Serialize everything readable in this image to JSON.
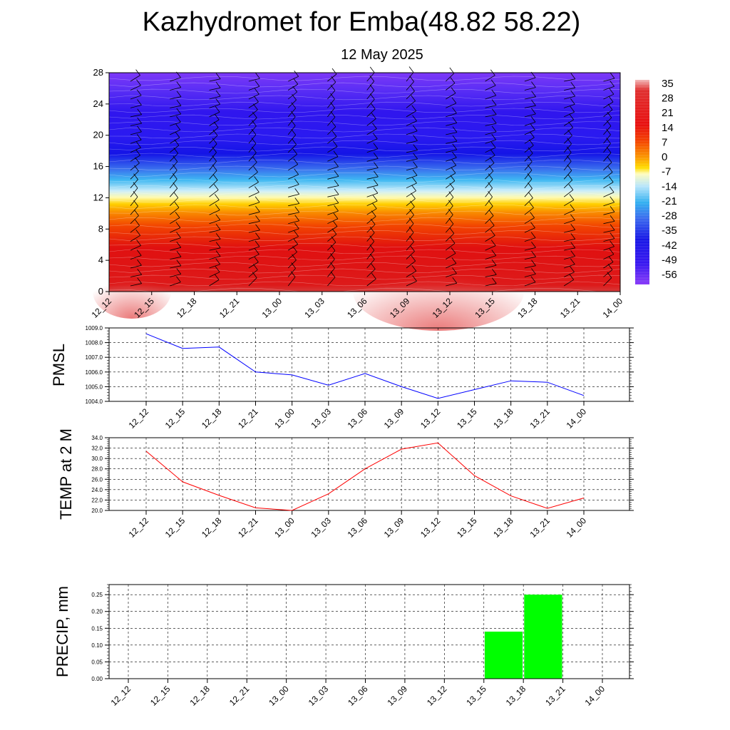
{
  "title": "Kazhydromet for Emba(48.82 58.22)",
  "subtitle": "12 May 2025",
  "time_labels": [
    "12_12",
    "12_15",
    "12_18",
    "12_21",
    "13_00",
    "13_03",
    "13_06",
    "13_09",
    "13_12",
    "13_15",
    "13_18",
    "13_21",
    "14_00"
  ],
  "colors": {
    "pmsl_line": "#0000ff",
    "temp_line": "#ff0000",
    "precip_bar": "#00ff00"
  },
  "chart_data": [
    {
      "type": "heatmap",
      "y_ticks": [
        0,
        4,
        8,
        12,
        16,
        20,
        24,
        28
      ],
      "ylim": [
        0,
        28
      ],
      "colorbar_labels": [
        "35",
        "28",
        "21",
        "14",
        "7",
        "0",
        "-7",
        "-14",
        "-21",
        "-28",
        "-35",
        "-42",
        "-49",
        "-56"
      ],
      "colorbar_range": [
        -60,
        38
      ],
      "categories": [
        "12_12",
        "12_15",
        "12_18",
        "12_21",
        "13_00",
        "13_03",
        "13_06",
        "13_09",
        "13_12",
        "13_15",
        "13_18",
        "13_21",
        "14_00"
      ]
    },
    {
      "type": "line",
      "ylabel": "PMSL",
      "categories": [
        "12_12",
        "12_15",
        "12_18",
        "12_21",
        "13_00",
        "13_03",
        "13_06",
        "13_09",
        "13_12",
        "13_15",
        "13_18",
        "13_21",
        "14_00"
      ],
      "values": [
        1008.6,
        1007.6,
        1007.7,
        1006.0,
        1005.8,
        1005.1,
        1005.9,
        1005.0,
        1004.2,
        1004.8,
        1005.4,
        1005.3,
        1004.4
      ],
      "ylim": [
        1004.0,
        1009.0
      ],
      "y_ticks": [
        "1004.0",
        "1005.0",
        "1006.0",
        "1007.0",
        "1008.0",
        "1009.0"
      ],
      "grid": true
    },
    {
      "type": "line",
      "ylabel": "TEMP at 2 M",
      "categories": [
        "12_12",
        "12_15",
        "12_18",
        "12_21",
        "13_00",
        "13_03",
        "13_06",
        "13_09",
        "13_12",
        "13_15",
        "13_18",
        "13_21",
        "14_00"
      ],
      "values": [
        31.4,
        25.5,
        22.9,
        20.5,
        20.0,
        23.2,
        28.0,
        31.8,
        33.0,
        26.7,
        22.8,
        20.4,
        22.4
      ],
      "ylim": [
        20.0,
        34.0
      ],
      "y_ticks": [
        "20.0",
        "22.0",
        "24.0",
        "26.0",
        "28.0",
        "30.0",
        "32.0",
        "34.0"
      ],
      "grid": true
    },
    {
      "type": "bar",
      "ylabel": "PRECIP, mm",
      "categories": [
        "12_12",
        "12_15",
        "12_18",
        "12_21",
        "13_00",
        "13_03",
        "13_06",
        "13_09",
        "13_12",
        "13_15",
        "13_18",
        "13_21",
        "14_00"
      ],
      "values": [
        0,
        0,
        0,
        0,
        0,
        0,
        0,
        0,
        0,
        0,
        0.14,
        0.25,
        0
      ],
      "ylim": [
        0,
        0.28
      ],
      "y_ticks": [
        "0.00",
        "0.05",
        "0.10",
        "0.15",
        "0.20",
        "0.25"
      ],
      "grid": true
    }
  ]
}
